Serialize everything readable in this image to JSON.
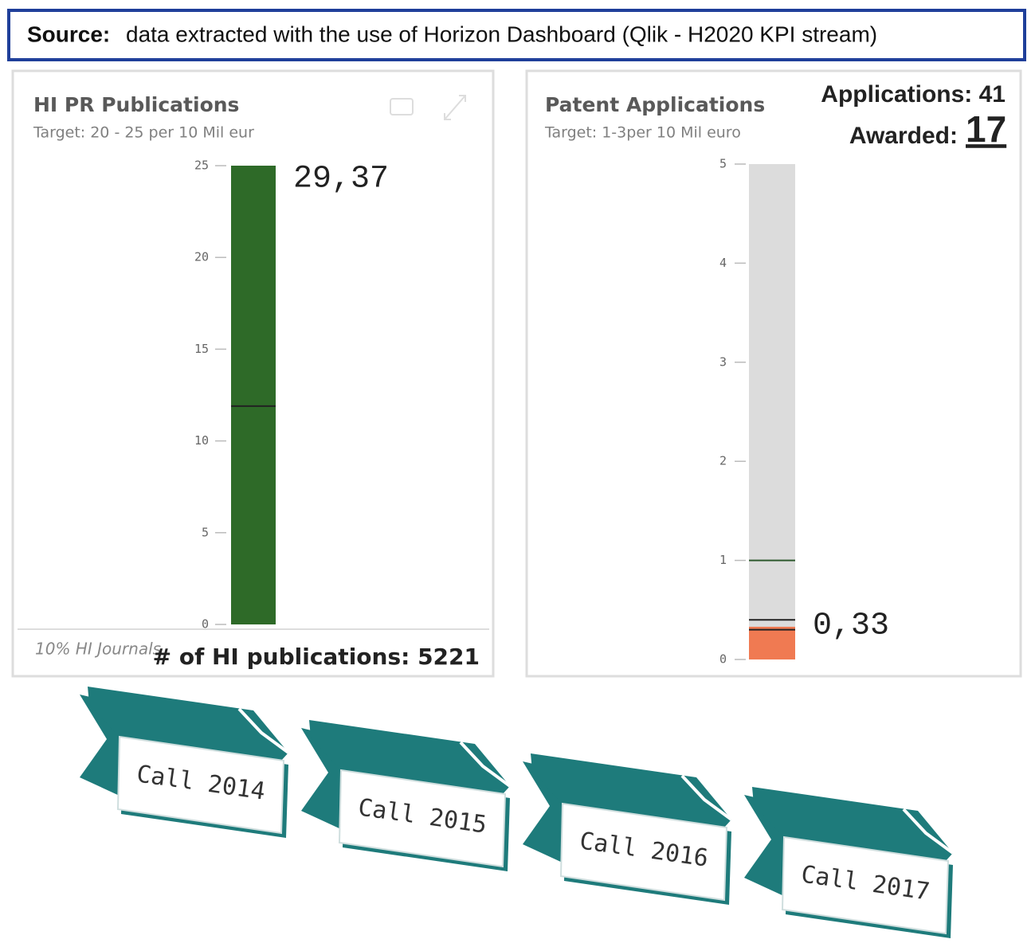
{
  "source": {
    "label": "Source:",
    "text": "data extracted with the use of Horizon Dashboard (Qlik - H2020 KPI stream)"
  },
  "chart_data": [
    {
      "type": "bar",
      "title": "HI PR Publications",
      "subtitle": "Target: 20 - 25 per 10 Mil eur",
      "values": [
        29.37
      ],
      "value_labels": [
        "29,37"
      ],
      "color": "#2e6a28",
      "markers": [
        11.9
      ],
      "ylim": [
        0,
        25
      ],
      "yticks": [
        0,
        5,
        10,
        15,
        20,
        25
      ],
      "footer_left": "10% HI Journals",
      "footer_right": "# of HI publications: 5221"
    },
    {
      "type": "bar",
      "title": "Patent Applications",
      "subtitle": "Target: 1-3per 10 Mil euro",
      "values": [
        0.33
      ],
      "value_labels": [
        "0,33"
      ],
      "color": "#f07a52",
      "markers": [
        1,
        0.3,
        0.4
      ],
      "ylim": [
        0,
        5
      ],
      "yticks": [
        0,
        1,
        2,
        3,
        4,
        5
      ],
      "applications": "Applications: 41",
      "awarded_label": "Awarded:",
      "awarded_value": "17"
    }
  ],
  "ribbons": [
    "Call 2014",
    "Call 2015",
    "Call 2016",
    "Call 2017"
  ]
}
